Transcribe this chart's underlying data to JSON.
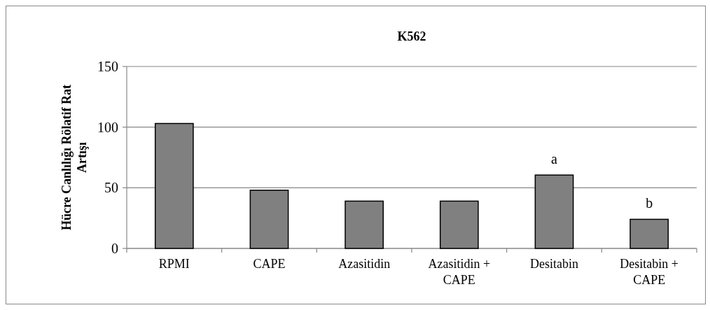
{
  "chart_data": {
    "type": "bar",
    "title": "K562",
    "ylabel": "Hücre Canlılığı Rölatif Rat Artışı",
    "categories": [
      "RPMI",
      "CAPE",
      "Azasitidin",
      "Azasitidin + CAPE",
      "Desitabin",
      "Desitabin + CAPE"
    ],
    "values": [
      103,
      48,
      39,
      39,
      60.5,
      24
    ],
    "color": "#808080",
    "ylim": [
      0,
      150
    ],
    "yticks": [
      0,
      50,
      100,
      150
    ],
    "grid": "y",
    "annotations": [
      {
        "text": "a",
        "x": "Desitabin",
        "y": 60.5
      },
      {
        "text": "b",
        "x": "Desitabin + CAPE",
        "y": 24
      }
    ]
  }
}
